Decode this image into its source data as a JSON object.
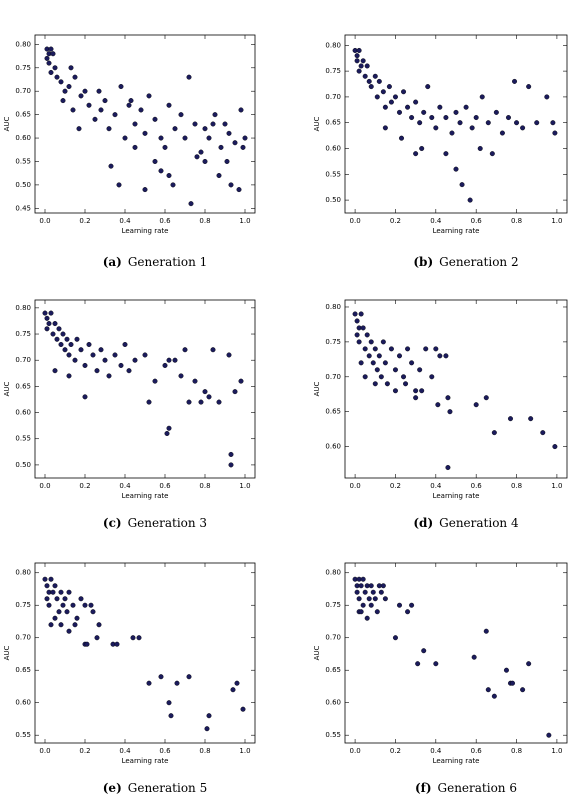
{
  "chart_data": [
    {
      "type": "scatter",
      "label": "(a)",
      "title": "Generation 1",
      "xlabel": "Learning rate",
      "ylabel": "AUC",
      "color": "#1b1b5c",
      "xlim": [
        -0.05,
        1.05
      ],
      "ylim": [
        0.44,
        0.82
      ],
      "xticks": [
        {
          "value": 0,
          "label": "0.0"
        },
        0.2,
        0.4,
        0.6,
        0.8,
        {
          "value": 1,
          "label": "1.0"
        }
      ],
      "yticks": [
        0.45,
        {
          "value": 0.5,
          "label": "0.50"
        },
        0.55,
        {
          "value": 0.6,
          "label": "0.60"
        },
        0.65,
        {
          "value": 0.7,
          "label": "0.70"
        },
        0.75,
        {
          "value": 0.8,
          "label": "0.80"
        }
      ],
      "x": [
        0.01,
        0.02,
        0.01,
        0.03,
        0.02,
        0.04,
        0.05,
        0.03,
        0.06,
        0.08,
        0.1,
        0.12,
        0.09,
        0.14,
        0.15,
        0.18,
        0.2,
        0.22,
        0.25,
        0.17,
        0.13,
        0.28,
        0.3,
        0.32,
        0.27,
        0.35,
        0.38,
        0.4,
        0.42,
        0.45,
        0.48,
        0.5,
        0.52,
        0.55,
        0.58,
        0.6,
        0.62,
        0.65,
        0.68,
        0.7,
        0.72,
        0.75,
        0.78,
        0.8,
        0.82,
        0.85,
        0.88,
        0.9,
        0.92,
        0.95,
        0.98,
        1,
        0.33,
        0.37,
        0.55,
        0.62,
        0.73,
        0.8,
        0.87,
        0.93,
        0.97,
        0.45,
        0.5,
        0.58,
        0.64,
        0.76,
        0.84,
        0.91,
        0.99,
        0.43
      ],
      "y": [
        0.79,
        0.78,
        0.77,
        0.79,
        0.76,
        0.78,
        0.75,
        0.74,
        0.73,
        0.72,
        0.7,
        0.71,
        0.68,
        0.66,
        0.73,
        0.69,
        0.7,
        0.67,
        0.64,
        0.62,
        0.75,
        0.66,
        0.68,
        0.62,
        0.7,
        0.65,
        0.71,
        0.6,
        0.67,
        0.63,
        0.66,
        0.61,
        0.69,
        0.64,
        0.6,
        0.58,
        0.67,
        0.62,
        0.65,
        0.6,
        0.73,
        0.63,
        0.57,
        0.62,
        0.6,
        0.65,
        0.58,
        0.63,
        0.61,
        0.59,
        0.66,
        0.6,
        0.54,
        0.5,
        0.55,
        0.52,
        0.46,
        0.55,
        0.52,
        0.5,
        0.49,
        0.58,
        0.49,
        0.53,
        0.5,
        0.56,
        0.63,
        0.55,
        0.58,
        0.68
      ]
    },
    {
      "type": "scatter",
      "label": "(b)",
      "title": "Generation 2",
      "xlabel": "Learning rate",
      "ylabel": "AUC",
      "color": "#1b1b5c",
      "xlim": [
        -0.05,
        1.05
      ],
      "ylim": [
        0.475,
        0.82
      ],
      "xticks": [
        {
          "value": 0,
          "label": "0.0"
        },
        0.2,
        0.4,
        0.6,
        0.8,
        {
          "value": 1,
          "label": "1.0"
        }
      ],
      "yticks": [
        {
          "value": 0.5,
          "label": "0.50"
        },
        0.55,
        {
          "value": 0.6,
          "label": "0.60"
        },
        0.65,
        {
          "value": 0.7,
          "label": "0.70"
        },
        0.75,
        {
          "value": 0.8,
          "label": "0.80"
        }
      ],
      "x": [
        0,
        0.01,
        0.02,
        0.01,
        0.03,
        0.02,
        0.04,
        0.05,
        0.06,
        0.07,
        0.08,
        0.1,
        0.11,
        0.12,
        0.14,
        0.15,
        0.17,
        0.18,
        0.2,
        0.22,
        0.24,
        0.26,
        0.28,
        0.3,
        0.32,
        0.34,
        0.36,
        0.38,
        0.4,
        0.42,
        0.45,
        0.48,
        0.5,
        0.52,
        0.55,
        0.58,
        0.6,
        0.63,
        0.66,
        0.7,
        0.73,
        0.76,
        0.8,
        0.83,
        0.86,
        0.9,
        0.95,
        0.98,
        0.99,
        0.79,
        0.3,
        0.33,
        0.45,
        0.5,
        0.53,
        0.57,
        0.68,
        0.23,
        0.15,
        0.62
      ],
      "y": [
        0.79,
        0.78,
        0.79,
        0.77,
        0.76,
        0.75,
        0.77,
        0.74,
        0.76,
        0.73,
        0.72,
        0.74,
        0.7,
        0.73,
        0.71,
        0.68,
        0.72,
        0.69,
        0.7,
        0.67,
        0.71,
        0.68,
        0.66,
        0.69,
        0.65,
        0.67,
        0.72,
        0.66,
        0.64,
        0.68,
        0.66,
        0.63,
        0.67,
        0.65,
        0.68,
        0.64,
        0.66,
        0.7,
        0.65,
        0.67,
        0.63,
        0.66,
        0.65,
        0.64,
        0.72,
        0.65,
        0.7,
        0.65,
        0.63,
        0.73,
        0.59,
        0.6,
        0.59,
        0.56,
        0.53,
        0.5,
        0.59,
        0.62,
        0.64,
        0.6
      ]
    },
    {
      "type": "scatter",
      "label": "(c)",
      "title": "Generation 3",
      "xlabel": "Learning rate",
      "ylabel": "AUC",
      "color": "#1b1b5c",
      "xlim": [
        -0.05,
        1.05
      ],
      "ylim": [
        0.475,
        0.815
      ],
      "xticks": [
        {
          "value": 0,
          "label": "0.0"
        },
        0.2,
        0.4,
        0.6,
        0.8,
        {
          "value": 1,
          "label": "1.0"
        }
      ],
      "yticks": [
        {
          "value": 0.5,
          "label": "0.50"
        },
        0.55,
        {
          "value": 0.6,
          "label": "0.60"
        },
        0.65,
        {
          "value": 0.7,
          "label": "0.70"
        },
        0.75,
        {
          "value": 0.8,
          "label": "0.80"
        }
      ],
      "x": [
        0,
        0.01,
        0.02,
        0.01,
        0.03,
        0.04,
        0.05,
        0.06,
        0.07,
        0.08,
        0.09,
        0.1,
        0.11,
        0.12,
        0.13,
        0.15,
        0.16,
        0.18,
        0.2,
        0.22,
        0.24,
        0.26,
        0.28,
        0.3,
        0.32,
        0.35,
        0.38,
        0.4,
        0.42,
        0.45,
        0.5,
        0.55,
        0.6,
        0.62,
        0.65,
        0.7,
        0.75,
        0.78,
        0.8,
        0.84,
        0.87,
        0.92,
        0.95,
        0.98,
        0.72,
        0.62,
        0.61,
        0.93,
        0.93,
        0.2,
        0.52,
        0.12,
        0.05,
        0.68,
        0.82
      ],
      "y": [
        0.79,
        0.78,
        0.77,
        0.76,
        0.79,
        0.75,
        0.77,
        0.74,
        0.76,
        0.73,
        0.75,
        0.72,
        0.74,
        0.71,
        0.73,
        0.7,
        0.74,
        0.72,
        0.69,
        0.73,
        0.71,
        0.68,
        0.72,
        0.7,
        0.67,
        0.71,
        0.69,
        0.73,
        0.68,
        0.7,
        0.71,
        0.66,
        0.69,
        0.7,
        0.7,
        0.72,
        0.66,
        0.62,
        0.64,
        0.72,
        0.62,
        0.71,
        0.64,
        0.66,
        0.62,
        0.57,
        0.56,
        0.52,
        0.5,
        0.63,
        0.62,
        0.67,
        0.68,
        0.67,
        0.63
      ]
    },
    {
      "type": "scatter",
      "label": "(d)",
      "title": "Generation 4",
      "xlabel": "Learning rate",
      "ylabel": "AUC",
      "color": "#1b1b5c",
      "xlim": [
        -0.05,
        1.05
      ],
      "ylim": [
        0.555,
        0.81
      ],
      "xticks": [
        {
          "value": 0,
          "label": "0.0"
        },
        0.2,
        0.4,
        0.6,
        0.8,
        {
          "value": 1,
          "label": "1.0"
        }
      ],
      "yticks": [
        {
          "value": 0.6,
          "label": "0.60"
        },
        0.65,
        {
          "value": 0.7,
          "label": "0.70"
        },
        0.75,
        {
          "value": 0.8,
          "label": "0.80"
        }
      ],
      "x": [
        0,
        0.01,
        0.02,
        0.01,
        0.03,
        0.02,
        0.04,
        0.05,
        0.06,
        0.07,
        0.08,
        0.09,
        0.1,
        0.11,
        0.12,
        0.13,
        0.14,
        0.15,
        0.16,
        0.18,
        0.2,
        0.22,
        0.24,
        0.26,
        0.28,
        0.3,
        0.32,
        0.35,
        0.38,
        0.4,
        0.42,
        0.45,
        0.3,
        0.33,
        0.41,
        0.46,
        0.47,
        0.46,
        0.6,
        0.65,
        0.69,
        0.77,
        0.87,
        0.93,
        0.99,
        0.05,
        0.1,
        0.2,
        0.25,
        0.03
      ],
      "y": [
        0.79,
        0.78,
        0.77,
        0.76,
        0.79,
        0.75,
        0.77,
        0.74,
        0.76,
        0.73,
        0.75,
        0.72,
        0.74,
        0.71,
        0.73,
        0.7,
        0.75,
        0.72,
        0.69,
        0.74,
        0.71,
        0.73,
        0.7,
        0.74,
        0.72,
        0.68,
        0.71,
        0.74,
        0.7,
        0.74,
        0.73,
        0.73,
        0.67,
        0.68,
        0.66,
        0.67,
        0.65,
        0.57,
        0.66,
        0.67,
        0.62,
        0.64,
        0.64,
        0.62,
        0.6,
        0.7,
        0.69,
        0.68,
        0.69,
        0.72
      ]
    },
    {
      "type": "scatter",
      "label": "(e)",
      "title": "Generation 5",
      "xlabel": "Learning rate",
      "ylabel": "AUC",
      "color": "#1b1b5c",
      "xlim": [
        -0.05,
        1.05
      ],
      "ylim": [
        0.538,
        0.815
      ],
      "xticks": [
        {
          "value": 0,
          "label": "0.0"
        },
        0.2,
        0.4,
        0.6,
        0.8,
        {
          "value": 1,
          "label": "1.0"
        }
      ],
      "yticks": [
        0.55,
        {
          "value": 0.6,
          "label": "0.60"
        },
        0.65,
        {
          "value": 0.7,
          "label": "0.70"
        },
        0.75,
        {
          "value": 0.8,
          "label": "0.80"
        }
      ],
      "x": [
        0,
        0.01,
        0.02,
        0.01,
        0.03,
        0.02,
        0.04,
        0.05,
        0.06,
        0.07,
        0.08,
        0.09,
        0.1,
        0.11,
        0.12,
        0.14,
        0.16,
        0.18,
        0.2,
        0.03,
        0.05,
        0.08,
        0.12,
        0.15,
        0.2,
        0.21,
        0.24,
        0.26,
        0.27,
        0.34,
        0.36,
        0.44,
        0.47,
        0.52,
        0.58,
        0.62,
        0.63,
        0.66,
        0.72,
        0.81,
        0.82,
        0.94,
        0.96,
        0.99,
        0.23
      ],
      "y": [
        0.79,
        0.78,
        0.77,
        0.76,
        0.79,
        0.75,
        0.77,
        0.78,
        0.76,
        0.74,
        0.77,
        0.75,
        0.76,
        0.74,
        0.77,
        0.75,
        0.73,
        0.76,
        0.75,
        0.72,
        0.73,
        0.72,
        0.71,
        0.72,
        0.69,
        0.69,
        0.74,
        0.7,
        0.72,
        0.69,
        0.69,
        0.7,
        0.7,
        0.63,
        0.64,
        0.6,
        0.58,
        0.63,
        0.64,
        0.56,
        0.58,
        0.62,
        0.63,
        0.59,
        0.75
      ]
    },
    {
      "type": "scatter",
      "label": "(f)",
      "title": "Generation 6",
      "xlabel": "Learning rate",
      "ylabel": "AUC",
      "color": "#1b1b5c",
      "xlim": [
        -0.05,
        1.05
      ],
      "ylim": [
        0.538,
        0.815
      ],
      "xticks": [
        {
          "value": 0,
          "label": "0.0"
        },
        0.2,
        0.4,
        0.6,
        0.8,
        {
          "value": 1,
          "label": "1.0"
        }
      ],
      "yticks": [
        0.55,
        {
          "value": 0.6,
          "label": "0.60"
        },
        0.65,
        {
          "value": 0.7,
          "label": "0.70"
        },
        0.75,
        {
          "value": 0.8,
          "label": "0.80"
        }
      ],
      "x": [
        0,
        0.01,
        0.02,
        0.01,
        0.03,
        0.02,
        0.04,
        0.05,
        0.06,
        0.07,
        0.08,
        0.09,
        0.1,
        0.12,
        0.13,
        0.02,
        0.04,
        0.06,
        0.08,
        0.11,
        0.2,
        0.22,
        0.26,
        0.28,
        0.31,
        0.34,
        0.4,
        0.59,
        0.65,
        0.66,
        0.69,
        0.75,
        0.77,
        0.78,
        0.83,
        0.86,
        0.96,
        0.14,
        0.03,
        0.15
      ],
      "y": [
        0.79,
        0.78,
        0.79,
        0.77,
        0.78,
        0.76,
        0.79,
        0.77,
        0.78,
        0.76,
        0.78,
        0.77,
        0.76,
        0.78,
        0.77,
        0.74,
        0.75,
        0.73,
        0.75,
        0.74,
        0.7,
        0.75,
        0.74,
        0.75,
        0.66,
        0.68,
        0.66,
        0.67,
        0.71,
        0.62,
        0.61,
        0.65,
        0.63,
        0.63,
        0.62,
        0.66,
        0.55,
        0.78,
        0.74,
        0.76
      ]
    }
  ]
}
